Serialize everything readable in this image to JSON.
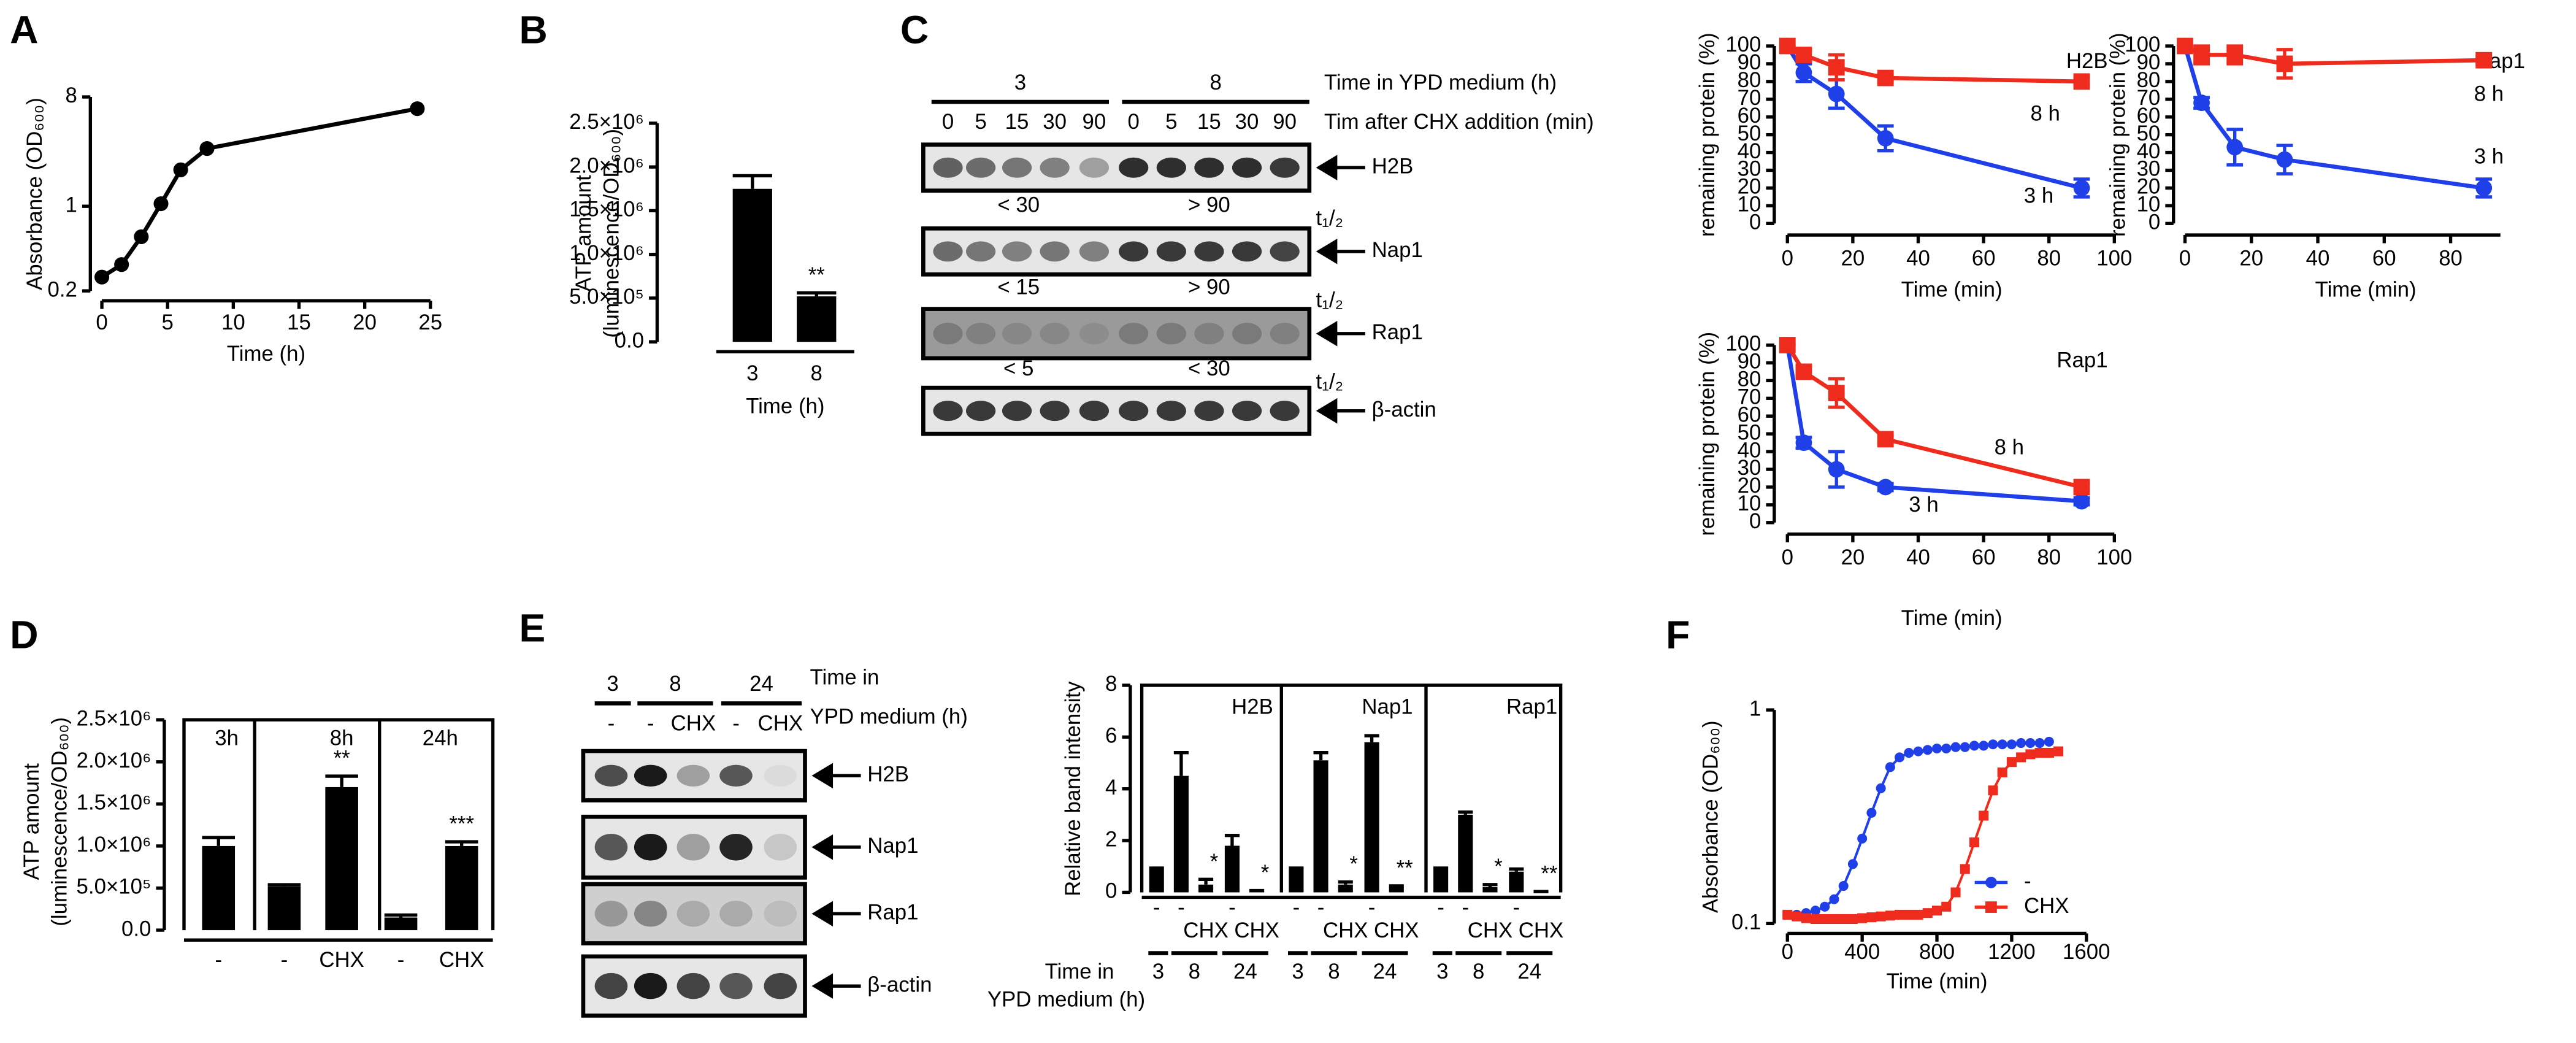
{
  "panel_letters": [
    "A",
    "B",
    "C",
    "D",
    "E",
    "F"
  ],
  "blot_c": {
    "groups": [
      "3",
      "8"
    ],
    "group_title": "Time in YPD medium (h)",
    "lanes": [
      "0",
      "5",
      "15",
      "30",
      "90",
      "0",
      "5",
      "15",
      "30",
      "90"
    ],
    "lane_title": "Tim after CHX addition (min)",
    "proteins": [
      "H2B",
      "Nap1",
      "Rap1",
      "β-actin"
    ],
    "half_life_label": "t₁/₂",
    "half_lives": [
      [
        "< 30",
        "> 90"
      ],
      [
        "< 15",
        "> 90"
      ],
      [
        "< 5",
        "< 30"
      ]
    ]
  },
  "blot_e": {
    "groups": [
      "3",
      "8",
      "24"
    ],
    "group_title": [
      "Time in",
      "YPD medium (h)"
    ],
    "lanes": [
      "-",
      "-",
      "CHX",
      "-",
      "CHX"
    ],
    "proteins": [
      "H2B",
      "Nap1",
      "Rap1",
      "β-actin"
    ]
  },
  "chart_data": [
    {
      "type": "line",
      "ylabel": "Absorbance (OD₆₀₀)",
      "xlabel": "Time (h)",
      "x": [
        0,
        1.5,
        3,
        4.5,
        6,
        8,
        24
      ],
      "values": [
        0.26,
        0.33,
        0.56,
        1.05,
        2.0,
        3.0,
        6.4
      ],
      "color": "#000000",
      "marker": "circle",
      "yscale": "log",
      "xlim": [
        0,
        25
      ],
      "xticks": [
        0,
        5,
        10,
        15,
        20,
        25
      ],
      "ylim": [
        0.2,
        8
      ],
      "yticks": [
        0.2,
        1,
        8
      ]
    },
    {
      "type": "bar",
      "ylabel": [
        "ATP amount",
        "(luminescence/OD₆₀₀)"
      ],
      "xlabel": "Time (h)",
      "categories": [
        "3",
        "8"
      ],
      "values": [
        1750000,
        520000
      ],
      "errors": [
        150000,
        40000
      ],
      "annotations": [
        null,
        "**"
      ],
      "color": "#000000",
      "ylim": [
        0,
        2500000
      ],
      "yticks": [
        {
          "value": 0,
          "label": "0.0"
        },
        {
          "value": 500000,
          "label": "5.0×10⁵"
        },
        {
          "value": 1000000,
          "label": "1.0×10⁶"
        },
        {
          "value": 1500000,
          "label": "1.5×10⁶"
        },
        {
          "value": 2000000,
          "label": "2.0×10⁶"
        },
        {
          "value": 2500000,
          "label": "2.5×10⁶"
        }
      ]
    },
    {
      "type": "line",
      "title": "H2B",
      "ylabel": "remaining protein (%)",
      "xlabel": "Time (min)",
      "series": [
        {
          "name": "3 h",
          "color": "#1f3fe8",
          "marker": "circle",
          "x": [
            0,
            5,
            15,
            30,
            90
          ],
          "values": [
            100,
            85,
            73,
            48,
            20
          ],
          "errors": [
            0,
            5,
            8,
            7,
            5
          ]
        },
        {
          "name": "8 h",
          "color": "#ee2b1c",
          "marker": "square",
          "x": [
            0,
            5,
            15,
            30,
            90
          ],
          "values": [
            100,
            95,
            88,
            82,
            80
          ],
          "errors": [
            0,
            3,
            7,
            2,
            2
          ]
        }
      ],
      "xlim": [
        0,
        100
      ],
      "xticks": [
        0,
        20,
        40,
        60,
        80,
        100
      ],
      "ylim": [
        0,
        100
      ],
      "yticks": [
        0,
        10,
        20,
        30,
        40,
        50,
        60,
        70,
        80,
        90,
        100
      ]
    },
    {
      "type": "line",
      "title": "Nap1",
      "ylabel": "remaining protein (%)",
      "xlabel": "Time (min)",
      "series": [
        {
          "name": "3 h",
          "color": "#1f3fe8",
          "marker": "circle",
          "x": [
            0,
            5,
            15,
            30,
            90
          ],
          "values": [
            100,
            68,
            43,
            36,
            20
          ],
          "errors": [
            0,
            3,
            10,
            8,
            5
          ]
        },
        {
          "name": "8 h",
          "color": "#ee2b1c",
          "marker": "square",
          "x": [
            0,
            5,
            15,
            30,
            90
          ],
          "values": [
            100,
            95,
            95,
            90,
            92
          ],
          "errors": [
            0,
            5,
            5,
            8,
            2
          ]
        }
      ],
      "xlim": [
        0,
        95
      ],
      "xticks": [
        0,
        20,
        40,
        60,
        80
      ],
      "ylim": [
        0,
        100
      ],
      "yticks": [
        0,
        10,
        20,
        30,
        40,
        50,
        60,
        70,
        80,
        90,
        100
      ]
    },
    {
      "type": "line",
      "title": "Rap1",
      "ylabel": "remaining protein (%)",
      "xlabel": "Time (min)",
      "series": [
        {
          "name": "3 h",
          "color": "#1f3fe8",
          "marker": "circle",
          "x": [
            0,
            5,
            15,
            30,
            90
          ],
          "values": [
            100,
            45,
            30,
            20,
            12
          ],
          "errors": [
            0,
            3,
            10,
            2,
            2
          ]
        },
        {
          "name": "8 h",
          "color": "#ee2b1c",
          "marker": "square",
          "x": [
            0,
            5,
            15,
            30,
            90
          ],
          "values": [
            100,
            85,
            73,
            47,
            20
          ],
          "errors": [
            0,
            3,
            8,
            2,
            2
          ]
        }
      ],
      "xlim": [
        0,
        100
      ],
      "xticks": [
        0,
        20,
        40,
        60,
        80,
        100
      ],
      "ylim": [
        0,
        100
      ],
      "yticks": [
        0,
        10,
        20,
        30,
        40,
        50,
        60,
        70,
        80,
        90,
        100
      ]
    },
    {
      "type": "bar",
      "ylabel": [
        "ATP amount",
        "(luminescence/OD₆₀₀)"
      ],
      "categories": [
        "-",
        "-",
        "CHX",
        "-",
        "CHX"
      ],
      "groups": [
        "3h",
        "8h",
        "24h"
      ],
      "values": [
        1000000,
        520000,
        1700000,
        150000,
        1000000
      ],
      "errors": [
        100000,
        20000,
        130000,
        30000,
        50000
      ],
      "annotations": [
        null,
        null,
        "**",
        null,
        "***"
      ],
      "color": "#000000",
      "ylim": [
        0,
        2500000
      ],
      "yticks": [
        {
          "value": 0,
          "label": "0.0"
        },
        {
          "value": 500000,
          "label": "5.0×10⁵"
        },
        {
          "value": 1000000,
          "label": "1.0×10⁶"
        },
        {
          "value": 1500000,
          "label": "1.5×10⁶"
        },
        {
          "value": 2000000,
          "label": "2.0×10⁶"
        },
        {
          "value": 2500000,
          "label": "2.5×10⁶"
        }
      ]
    },
    {
      "type": "bar",
      "ylabel": "Relative band intensity",
      "categories": [
        "-",
        "-",
        "CHX",
        "-",
        "CHX"
      ],
      "groups": [
        "3",
        "8",
        "24"
      ],
      "group_title": [
        "Time in",
        "YPD medium (h)"
      ],
      "panels": [
        {
          "title": "H2B",
          "values": [
            1,
            4.5,
            0.3,
            1.8,
            0.05
          ],
          "errors": [
            0,
            0.9,
            0.2,
            0.4,
            0.02
          ],
          "annotations": [
            null,
            null,
            "*",
            null,
            "*"
          ]
        },
        {
          "title": "Nap1",
          "values": [
            1,
            5.1,
            0.3,
            5.8,
            0.2
          ],
          "errors": [
            0,
            0.3,
            0.1,
            0.25,
            0.05
          ],
          "annotations": [
            null,
            null,
            "*",
            null,
            "**"
          ]
        },
        {
          "title": "Rap1",
          "values": [
            1,
            3.0,
            0.2,
            0.8,
            0.02
          ],
          "errors": [
            0,
            0.1,
            0.1,
            0.1,
            0.01
          ],
          "annotations": [
            null,
            null,
            "*",
            null,
            "**"
          ]
        }
      ],
      "color": "#000000",
      "ylim": [
        0,
        8
      ],
      "yticks": [
        0,
        2,
        4,
        6,
        8
      ]
    },
    {
      "type": "line",
      "ylabel": "Absorbance (OD₆₀₀)",
      "xlabel": "Time (min)",
      "yscale": "log",
      "legend": "lower right",
      "series": [
        {
          "name": "-",
          "color": "#1f3fe8",
          "marker": "circle",
          "x": [
            0,
            50,
            100,
            150,
            200,
            250,
            300,
            350,
            400,
            450,
            500,
            550,
            600,
            650,
            700,
            750,
            800,
            850,
            900,
            950,
            1000,
            1050,
            1100,
            1150,
            1200,
            1250,
            1300,
            1350,
            1400
          ],
          "values": [
            0.11,
            0.11,
            0.112,
            0.115,
            0.12,
            0.13,
            0.15,
            0.19,
            0.25,
            0.33,
            0.43,
            0.54,
            0.6,
            0.63,
            0.64,
            0.65,
            0.66,
            0.66,
            0.67,
            0.67,
            0.68,
            0.68,
            0.69,
            0.69,
            0.69,
            0.7,
            0.7,
            0.7,
            0.71
          ]
        },
        {
          "name": "CHX",
          "color": "#ee2b1c",
          "marker": "square",
          "x": [
            0,
            50,
            100,
            150,
            200,
            250,
            300,
            350,
            400,
            450,
            500,
            550,
            600,
            650,
            700,
            750,
            800,
            850,
            900,
            950,
            1000,
            1050,
            1100,
            1150,
            1200,
            1250,
            1300,
            1350,
            1400,
            1450
          ],
          "values": [
            0.11,
            0.108,
            0.106,
            0.105,
            0.105,
            0.105,
            0.105,
            0.105,
            0.106,
            0.107,
            0.108,
            0.109,
            0.11,
            0.11,
            0.11,
            0.112,
            0.115,
            0.12,
            0.14,
            0.18,
            0.24,
            0.32,
            0.42,
            0.51,
            0.57,
            0.6,
            0.62,
            0.63,
            0.63,
            0.64
          ]
        }
      ],
      "xlim": [
        0,
        1600
      ],
      "xticks": [
        0,
        400,
        800,
        1200,
        1600
      ],
      "ylim": [
        0.1,
        1
      ],
      "yticks": [
        0.1,
        1
      ]
    }
  ]
}
